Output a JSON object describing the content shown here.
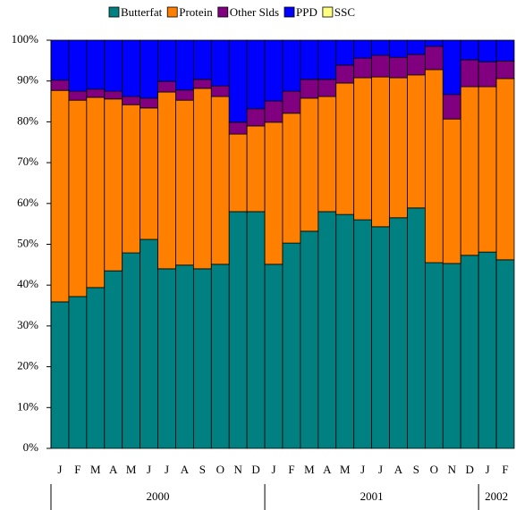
{
  "chart_data": {
    "type": "stacked_bar",
    "categories": [
      "J",
      "F",
      "M",
      "A",
      "M",
      "J",
      "J",
      "A",
      "S",
      "O",
      "N",
      "D",
      "J",
      "F",
      "M",
      "A",
      "M",
      "J",
      "J",
      "A",
      "S",
      "O",
      "N",
      "D",
      "J",
      "F"
    ],
    "years": [
      {
        "label": "2000",
        "count": 12
      },
      {
        "label": "2001",
        "count": 12
      },
      {
        "label": "2002",
        "count": 2
      }
    ],
    "series": [
      {
        "name": "Butterfat",
        "color": "#008080",
        "values": [
          35.9,
          37.2,
          39.4,
          43.5,
          47.9,
          51.2,
          44.0,
          44.9,
          44.0,
          45.1,
          58.0,
          58.0,
          45.1,
          50.3,
          53.2,
          58.0,
          57.3,
          56.0,
          54.3,
          56.5,
          58.9,
          45.5,
          45.3,
          47.3,
          48.1,
          46.2
        ]
      },
      {
        "name": "Protein",
        "color": "#ff8000",
        "values": [
          51.8,
          48.1,
          46.6,
          42.1,
          36.3,
          32.2,
          43.3,
          40.4,
          44.2,
          41.1,
          19.0,
          21.0,
          34.8,
          31.8,
          32.6,
          28.2,
          32.2,
          34.8,
          36.7,
          34.3,
          32.6,
          47.3,
          35.4,
          41.3,
          40.5,
          44.4
        ]
      },
      {
        "name": "Other Slds",
        "color": "#800080",
        "values": [
          2.5,
          2.2,
          2.0,
          1.9,
          2.0,
          2.4,
          2.6,
          2.5,
          2.2,
          2.6,
          2.9,
          4.2,
          5.2,
          5.4,
          4.6,
          4.2,
          4.4,
          4.8,
          5.3,
          5.0,
          5.0,
          5.7,
          6.0,
          6.6,
          6.1,
          4.3
        ]
      },
      {
        "name": "PPD",
        "color": "#0000ff",
        "values": [
          9.8,
          12.5,
          12.0,
          12.5,
          13.8,
          14.2,
          10.1,
          12.2,
          9.6,
          11.2,
          20.1,
          16.8,
          14.9,
          12.5,
          9.6,
          9.6,
          6.1,
          4.4,
          3.7,
          4.2,
          3.5,
          1.5,
          13.3,
          4.8,
          5.3,
          5.1
        ]
      },
      {
        "name": "SSC",
        "color": "#ffff80",
        "values": [
          0,
          0,
          0,
          0,
          0,
          0,
          0,
          0,
          0,
          0,
          0,
          0,
          0,
          0,
          0,
          0,
          0,
          0,
          0,
          0,
          0,
          0,
          0,
          0,
          0,
          0
        ]
      }
    ],
    "ylim": [
      0,
      100
    ],
    "yticks": [
      {
        "value": 0,
        "label": "0%"
      },
      {
        "value": 10,
        "label": "10%"
      },
      {
        "value": 20,
        "label": "20%"
      },
      {
        "value": 30,
        "label": "30%"
      },
      {
        "value": 40,
        "label": "40%"
      },
      {
        "value": 50,
        "label": "50%"
      },
      {
        "value": 60,
        "label": "60%"
      },
      {
        "value": 70,
        "label": "70%"
      },
      {
        "value": 80,
        "label": "80%"
      },
      {
        "value": 90,
        "label": "90%"
      },
      {
        "value": 100,
        "label": "100%"
      }
    ],
    "legend": "top"
  }
}
